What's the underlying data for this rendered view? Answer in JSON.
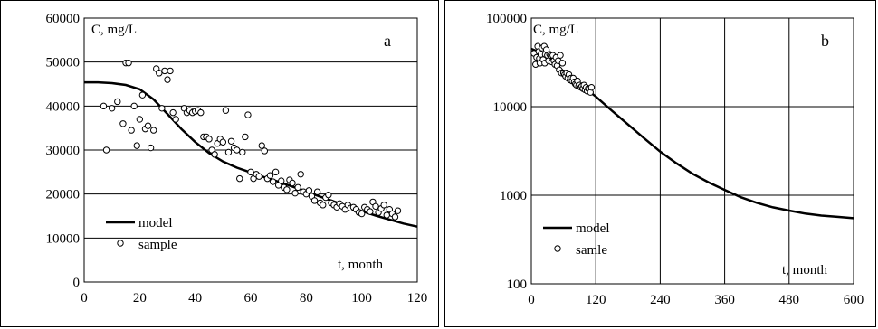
{
  "chart_data": [
    {
      "type": "scatter",
      "panel_letter": "a",
      "ylabel": "C, mg/L",
      "xlabel": "t,  month",
      "xlim": [
        0,
        120
      ],
      "ylim": [
        0,
        60000
      ],
      "x_ticks": [
        "0",
        "20",
        "40",
        "60",
        "80",
        "100",
        "120"
      ],
      "y_ticks": [
        "0",
        "10000",
        "20000",
        "30000",
        "40000",
        "50000",
        "60000"
      ],
      "grid": "horizontal",
      "legend": {
        "placement": "bottom-left",
        "entries": [
          "model",
          "sample"
        ]
      },
      "series": [
        {
          "name": "model",
          "kind": "line",
          "x": [
            0,
            5,
            10,
            15,
            20,
            25,
            30,
            35,
            40,
            45,
            50,
            55,
            60,
            65,
            70,
            75,
            80,
            85,
            90,
            95,
            100,
            105,
            110,
            115,
            120
          ],
          "y": [
            45400,
            45400,
            45200,
            44800,
            43800,
            41500,
            38200,
            34800,
            31800,
            29300,
            27400,
            26000,
            24900,
            23800,
            22800,
            21700,
            20600,
            19400,
            18300,
            17200,
            16100,
            15100,
            14200,
            13300,
            12600
          ]
        },
        {
          "name": "sample",
          "kind": "points",
          "x": [
            7,
            8,
            10,
            12,
            14,
            15,
            16,
            17,
            18,
            19,
            20,
            21,
            22,
            23,
            24,
            25,
            26,
            27,
            28,
            29,
            30,
            31,
            32,
            33,
            36,
            37,
            38,
            39,
            40,
            41,
            42,
            43,
            44,
            45,
            46,
            47,
            48,
            49,
            50,
            51,
            52,
            53,
            54,
            55,
            56,
            57,
            58,
            59,
            60,
            61,
            62,
            63,
            64,
            65,
            66,
            67,
            68,
            69,
            70,
            71,
            72,
            73,
            74,
            75,
            76,
            77,
            78,
            79,
            80,
            81,
            82,
            83,
            84,
            85,
            86,
            87,
            88,
            89,
            90,
            91,
            92,
            93,
            94,
            95,
            96,
            97,
            98,
            99,
            100,
            101,
            102,
            103,
            104,
            105,
            106,
            107,
            108,
            109,
            110,
            111,
            112,
            113
          ],
          "y": [
            40000,
            30000,
            39500,
            41000,
            36000,
            49800,
            49800,
            34500,
            40000,
            31000,
            37000,
            42500,
            34800,
            35500,
            30500,
            34500,
            48500,
            47500,
            39500,
            48000,
            46000,
            48000,
            38500,
            37000,
            39500,
            38500,
            39000,
            38500,
            38800,
            39000,
            38500,
            33000,
            33000,
            32500,
            30000,
            29000,
            31500,
            32500,
            31800,
            39000,
            29500,
            32000,
            30500,
            30000,
            23500,
            29500,
            33000,
            38000,
            25000,
            23500,
            24500,
            24000,
            31000,
            29800,
            23500,
            24200,
            22800,
            25000,
            22000,
            23000,
            21500,
            21000,
            23200,
            22500,
            20200,
            21500,
            24500,
            20500,
            20000,
            20800,
            19500,
            18500,
            20500,
            18000,
            17500,
            19200,
            19800,
            18000,
            17500,
            17000,
            17800,
            17200,
            16500,
            17500,
            16800,
            17000,
            16500,
            15800,
            15500,
            17000,
            16500,
            16000,
            18200,
            17200,
            15800,
            16700,
            17500,
            15200,
            16500,
            15500,
            14800,
            16200
          ]
        }
      ]
    },
    {
      "type": "scatter",
      "panel_letter": "b",
      "ylabel": "C, mg/L",
      "xlabel": "t,  month",
      "xlim": [
        0,
        600
      ],
      "ylim": [
        100,
        100000
      ],
      "y_scale": "log",
      "x_ticks": [
        "0",
        "120",
        "240",
        "360",
        "480",
        "600"
      ],
      "y_ticks": [
        "100",
        "1000",
        "10000",
        "100000"
      ],
      "grid": "both",
      "legend": {
        "placement": "bottom-left",
        "entries": [
          "model",
          "samle"
        ]
      },
      "series": [
        {
          "name": "model",
          "kind": "line",
          "x": [
            0,
            30,
            60,
            90,
            120,
            150,
            180,
            210,
            240,
            270,
            300,
            330,
            360,
            390,
            420,
            450,
            480,
            510,
            540,
            570,
            600
          ],
          "y": [
            45000,
            38000,
            25000,
            18000,
            13000,
            9000,
            6300,
            4400,
            3100,
            2300,
            1750,
            1400,
            1150,
            950,
            820,
            730,
            670,
            620,
            590,
            570,
            550
          ]
        },
        {
          "name": "samle",
          "kind": "points",
          "x": [
            5,
            8,
            10,
            12,
            14,
            15,
            16,
            18,
            20,
            22,
            24,
            25,
            26,
            28,
            30,
            32,
            34,
            36,
            38,
            40,
            42,
            44,
            46,
            48,
            50,
            52,
            54,
            56,
            58,
            60,
            62,
            64,
            66,
            68,
            70,
            72,
            74,
            76,
            78,
            80,
            82,
            84,
            86,
            88,
            90,
            92,
            94,
            96,
            98,
            100,
            102,
            104,
            106,
            108,
            110,
            112
          ],
          "y": [
            40000,
            30000,
            36000,
            48000,
            42000,
            35000,
            31000,
            39000,
            46000,
            34000,
            48000,
            31000,
            39000,
            44000,
            38000,
            33000,
            39000,
            38000,
            32000,
            38000,
            33000,
            30000,
            36000,
            29000,
            33000,
            26000,
            38000,
            24000,
            31000,
            24000,
            23000,
            22000,
            24000,
            21000,
            23000,
            20000,
            21000,
            19500,
            21000,
            19000,
            18000,
            17500,
            19500,
            17000,
            17500,
            16500,
            17000,
            16000,
            17500,
            15500,
            16500,
            15000,
            16000,
            15800,
            14500,
            16500
          ]
        }
      ]
    }
  ]
}
